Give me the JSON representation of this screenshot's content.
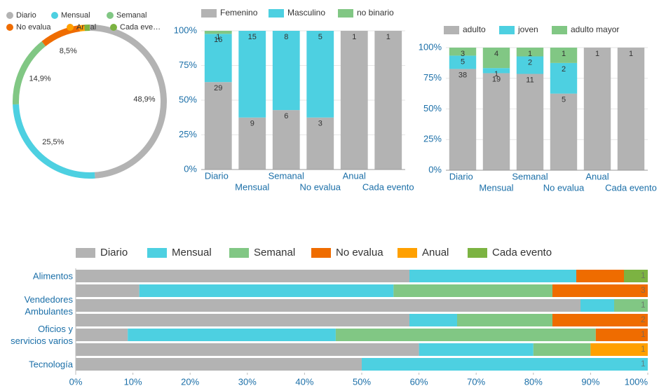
{
  "chart_data": [
    {
      "type": "donut",
      "categories": [
        "Diario",
        "Mensual",
        "Semanal",
        "No evalua",
        "Anual",
        "Cada eve…"
      ],
      "values": [
        48.9,
        25.5,
        14.9,
        8.5,
        1.1,
        1.1
      ],
      "value_labels": [
        "48,9%",
        "25,5%",
        "14,9%",
        "8,5%",
        null,
        null
      ],
      "colors": [
        "#b3b3b3",
        "#4dd0e1",
        "#81c784",
        "#ef6c00",
        "#ffa000",
        "#7cb342"
      ]
    },
    {
      "type": "stacked_percent_bar",
      "categories": [
        "Diario",
        "Mensual",
        "Semanal",
        "No evalua",
        "Anual",
        "Cada evento"
      ],
      "series": [
        {
          "name": "Femenino",
          "color": "#b3b3b3",
          "values": [
            29,
            9,
            6,
            3,
            1,
            1
          ]
        },
        {
          "name": "Masculino",
          "color": "#4dd0e1",
          "values": [
            16,
            15,
            8,
            5,
            0,
            0
          ]
        },
        {
          "name": "no binario",
          "color": "#81c784",
          "values": [
            1,
            0,
            0,
            0,
            0,
            0
          ]
        }
      ],
      "ylim": [
        0,
        100
      ],
      "yticks": [
        {
          "value": 0,
          "label": "0%"
        },
        {
          "value": 25,
          "label": "25%"
        },
        {
          "value": 50,
          "label": "50%"
        },
        {
          "value": 75,
          "label": "75%"
        },
        {
          "value": 100,
          "label": "100%"
        }
      ],
      "grid": true
    },
    {
      "type": "stacked_percent_bar",
      "categories": [
        "Diario",
        "Mensual",
        "Semanal",
        "No evalua",
        "Anual",
        "Cada evento"
      ],
      "series": [
        {
          "name": "adulto",
          "color": "#b3b3b3",
          "values": [
            38,
            19,
            11,
            5,
            1,
            1
          ]
        },
        {
          "name": "joven",
          "color": "#4dd0e1",
          "values": [
            5,
            1,
            2,
            2,
            0,
            0
          ]
        },
        {
          "name": "adulto mayor",
          "color": "#81c784",
          "values": [
            3,
            4,
            1,
            1,
            0,
            0
          ]
        }
      ],
      "ylim": [
        0,
        100
      ],
      "yticks": [
        {
          "value": 0,
          "label": "0%"
        },
        {
          "value": 25,
          "label": "25%"
        },
        {
          "value": 50,
          "label": "50%"
        },
        {
          "value": 75,
          "label": "75%"
        },
        {
          "value": 100,
          "label": "100%"
        }
      ],
      "grid": true
    },
    {
      "type": "stacked_percent_hbar",
      "categories": [
        "Alimentos",
        null,
        "Vendedores Ambulantes",
        null,
        "Oficios y servicios varios",
        null,
        "Tecnología"
      ],
      "series": [
        {
          "name": "Diario",
          "color": "#b3b3b3",
          "values": [
            14,
            2,
            15,
            7,
            1,
            6,
            1
          ]
        },
        {
          "name": "Mensual",
          "color": "#4dd0e1",
          "values": [
            7,
            8,
            1,
            1,
            4,
            2,
            1
          ]
        },
        {
          "name": "Semanal",
          "color": "#81c784",
          "values": [
            0,
            5,
            1,
            2,
            5,
            1,
            0
          ]
        },
        {
          "name": "No evalua",
          "color": "#ef6c00",
          "values": [
            2,
            3,
            0,
            2,
            1,
            0,
            0
          ]
        },
        {
          "name": "Anual",
          "color": "#ffa000",
          "values": [
            0,
            0,
            0,
            0,
            0,
            1,
            0
          ]
        },
        {
          "name": "Cada evento",
          "color": "#7cb342",
          "values": [
            1,
            0,
            0,
            0,
            0,
            0,
            0
          ]
        }
      ],
      "xlim": [
        0,
        100
      ],
      "xticks": [
        {
          "value": 0,
          "label": "0%"
        },
        {
          "value": 10,
          "label": "10%"
        },
        {
          "value": 20,
          "label": "20%"
        },
        {
          "value": 30,
          "label": "30%"
        },
        {
          "value": 40,
          "label": "40%"
        },
        {
          "value": 50,
          "label": "50%"
        },
        {
          "value": 60,
          "label": "60%"
        },
        {
          "value": 70,
          "label": "70%"
        },
        {
          "value": 80,
          "label": "80%"
        },
        {
          "value": 90,
          "label": "90%"
        },
        {
          "value": 100,
          "label": "100%"
        }
      ]
    }
  ]
}
